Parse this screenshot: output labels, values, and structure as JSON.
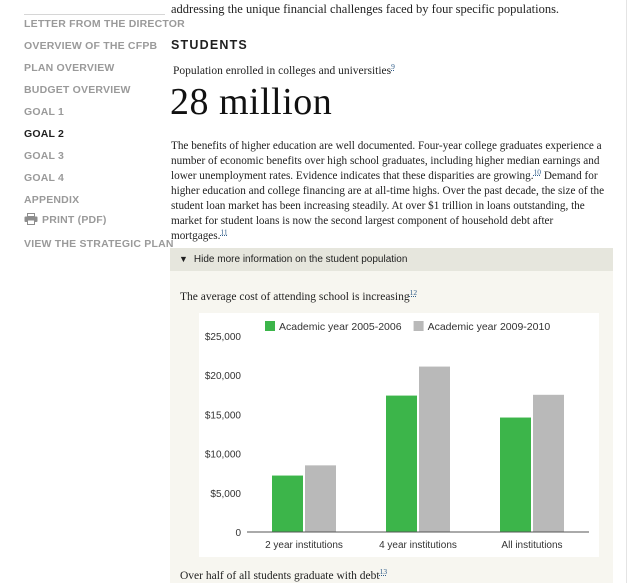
{
  "sidebar": {
    "items": [
      {
        "label": "LETTER FROM THE DIRECTOR",
        "active": false
      },
      {
        "label": "OVERVIEW OF THE CFPB",
        "active": false
      },
      {
        "label": "PLAN OVERVIEW",
        "active": false
      },
      {
        "label": "BUDGET OVERVIEW",
        "active": false
      },
      {
        "label": "GOAL 1",
        "active": false
      },
      {
        "label": "GOAL 2",
        "active": true
      },
      {
        "label": "GOAL 3",
        "active": false
      },
      {
        "label": "GOAL 4",
        "active": false
      },
      {
        "label": "APPENDIX",
        "active": false
      },
      {
        "label": "PRINT (PDF)",
        "active": false
      },
      {
        "label": "VIEW THE STRATEGIC PLAN",
        "active": false
      }
    ],
    "print_icon": "printer-icon"
  },
  "main": {
    "intro_fragment": "addressing the unique financial challenges faced by four specific populations.",
    "section_title": "STUDENTS",
    "stat_label": "Population enrolled in colleges and universities",
    "stat_ref": "9",
    "stat_value": "28 million",
    "body": {
      "part1": "The benefits of higher education are well documented. Four-year college graduates experience a number of economic benefits over high school graduates, including higher median earnings and lower unemployment rates. Evidence indicates that these disparities are growing.",
      "ref1": "10",
      "part2": " Demand for higher education and college financing are at all-time highs. Over the past decade, the size of the student loan market has been increasing steadily. At over $1 trillion in loans outstanding, the market for student loans is now the second largest component of household debt after mortgages.",
      "ref2": "11"
    },
    "toggle_label": "Hide more information on the student population",
    "chart_title": "The average cost of attending school is increasing",
    "chart_ref": "12",
    "bottom_text": "Over half of all students graduate with debt",
    "bottom_ref": "13"
  },
  "colors": {
    "green": "#3cb54a",
    "gray": "#b9b9b9",
    "nav_inactive": "#9a9a9a",
    "toggle_bg": "#e6e6dd",
    "panel_bg": "#f7f6f0"
  },
  "chart_data": {
    "type": "bar",
    "categories": [
      "2 year institutions",
      "4 year institutions",
      "All institutions"
    ],
    "series": [
      {
        "name": "Academic year 2005-2006",
        "values": [
          7200,
          17400,
          14600
        ]
      },
      {
        "name": "Academic year 2009-2010",
        "values": [
          8500,
          21100,
          17500
        ]
      }
    ],
    "ylim": [
      0,
      25000
    ],
    "yticks": [
      "0",
      "$5,000",
      "$10,000",
      "$15,000",
      "$20,000",
      "$25,000"
    ],
    "ytick_values": [
      0,
      5000,
      10000,
      15000,
      20000,
      25000
    ],
    "legend": "top",
    "grid": false
  }
}
